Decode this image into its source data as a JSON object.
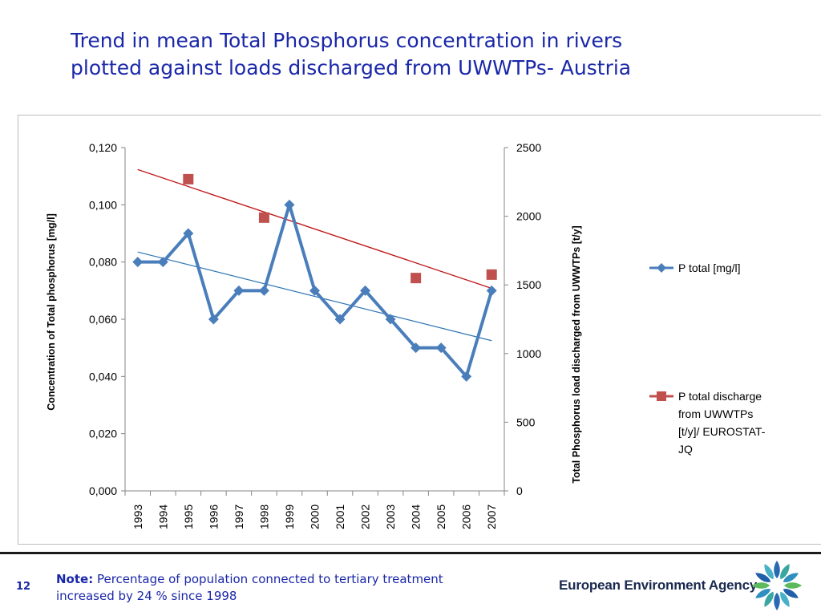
{
  "slide": {
    "title_line1": "Trend in mean Total Phosphorus concentration in rivers",
    "title_line2": "plotted against loads discharged from UWWTPs- Austria",
    "page_number": "12",
    "note_label": "Note:",
    "note_text": "Percentage of population  connected to tertiary treatment",
    "note_text2": "increased by 24 % since 1998",
    "agency_name": "European Environment Agency",
    "logo_icon": "eea-logo-icon",
    "title_color": "#1a27a8"
  },
  "chart_data": {
    "type": "line",
    "title": "",
    "categories": [
      "1993",
      "1994",
      "1995",
      "1996",
      "1997",
      "1998",
      "1999",
      "2000",
      "2001",
      "2002",
      "2003",
      "2004",
      "2005",
      "2006",
      "2007"
    ],
    "ylabel": "Concentration of Total phosphorus  [mg/l]",
    "y2label": "Total Phosphorus  load discharged from UWWTPs [t/y]",
    "ylim": [
      0,
      0.12
    ],
    "y2lim": [
      0,
      2500
    ],
    "yticks": [
      "0,000",
      "0,020",
      "0,040",
      "0,060",
      "0,080",
      "0,100",
      "0,120"
    ],
    "y2ticks": [
      "0",
      "500",
      "1000",
      "1500",
      "2000",
      "2500"
    ],
    "series": [
      {
        "name": "P total  [mg/l]",
        "axis": "left",
        "marker": "diamond",
        "color": "#4a7ebb",
        "values": [
          0.08,
          0.08,
          0.09,
          0.06,
          0.07,
          0.07,
          0.1,
          0.07,
          0.06,
          0.07,
          0.06,
          0.05,
          0.05,
          0.04,
          0.07
        ]
      },
      {
        "name": "P total  discharge from UWWTPs [t/y]/ EUROSTAT-JQ",
        "legend_lines": [
          "P total  discharge",
          "from UWWTPs",
          "[t/y]/ EUROSTAT-",
          "JQ"
        ],
        "axis": "right",
        "marker": "square",
        "color": "#c0504d",
        "values": [
          null,
          null,
          2270,
          null,
          null,
          1990,
          null,
          null,
          null,
          null,
          null,
          1550,
          null,
          null,
          1575
        ]
      }
    ],
    "trendlines": [
      {
        "series": "P total  [mg/l]",
        "color": "#2e75b6",
        "start": 0.0835,
        "end": 0.0525
      },
      {
        "series": "P total  discharge from UWWTPs [t/y]/ EUROSTAT-JQ",
        "color": "#c0191b",
        "start_y2": 2340,
        "end_y2": 1475
      }
    ],
    "grid": false,
    "legend": "right"
  }
}
